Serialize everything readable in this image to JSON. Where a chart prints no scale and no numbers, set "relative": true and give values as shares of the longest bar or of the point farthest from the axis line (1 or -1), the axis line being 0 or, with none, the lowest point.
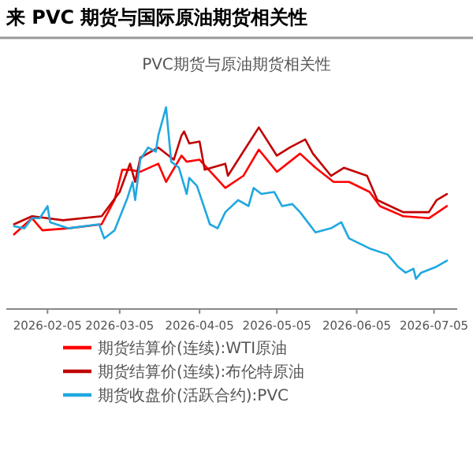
{
  "chart_data": {
    "type": "line",
    "title": "来 PVC 期货与国际原油期货相关性",
    "subtitle": "PVC期货与原油期货相关性",
    "relative": true,
    "legend": "bottom",
    "xlim": [
      "2026-01-20",
      "2026-07-14"
    ],
    "xticks": [
      "2026-02-05",
      "2026-03-05",
      "2026-04-05",
      "2026-05-05",
      "2026-06-05",
      "2026-07-05"
    ],
    "series": [
      {
        "name": "期货结算价(连续):WTI原油",
        "color": "#ff0000",
        "x": [
          "2026-01-23",
          "2026-01-30",
          "2026-02-03",
          "2026-02-13",
          "2026-02-26",
          "2026-03-03",
          "2026-03-06",
          "2026-03-09",
          "2026-03-13",
          "2026-03-20",
          "2026-03-23",
          "2026-03-29",
          "2026-03-31",
          "2026-04-05",
          "2026-04-15",
          "2026-04-22",
          "2026-04-28",
          "2026-05-05",
          "2026-05-10",
          "2026-05-14",
          "2026-05-20",
          "2026-05-27",
          "2026-06-02",
          "2026-06-10",
          "2026-06-14",
          "2026-06-23",
          "2026-07-03",
          "2026-07-10"
        ],
        "values": [
          0.37,
          0.45,
          0.39,
          0.4,
          0.42,
          0.54,
          0.69,
          0.69,
          0.68,
          0.72,
          0.63,
          0.76,
          0.73,
          0.74,
          0.6,
          0.66,
          0.79,
          0.68,
          0.73,
          0.77,
          0.7,
          0.63,
          0.63,
          0.58,
          0.51,
          0.46,
          0.45,
          0.51
        ]
      },
      {
        "name": "期货结算价(连续):布伦特原油",
        "color": "#c00000",
        "x": [
          "2026-01-23",
          "2026-01-30",
          "2026-02-11",
          "2026-02-26",
          "2026-03-05",
          "2026-03-09",
          "2026-03-11",
          "2026-03-13",
          "2026-03-20",
          "2026-03-26",
          "2026-03-29",
          "2026-03-30",
          "2026-04-01",
          "2026-04-05",
          "2026-04-07",
          "2026-04-15",
          "2026-04-16",
          "2026-04-22",
          "2026-04-28",
          "2026-05-05",
          "2026-05-10",
          "2026-05-16",
          "2026-05-19",
          "2026-05-26",
          "2026-05-31",
          "2026-06-09",
          "2026-06-13",
          "2026-06-23",
          "2026-07-03",
          "2026-07-06",
          "2026-07-10"
        ],
        "values": [
          0.42,
          0.46,
          0.44,
          0.46,
          0.58,
          0.72,
          0.63,
          0.75,
          0.8,
          0.74,
          0.86,
          0.88,
          0.82,
          0.83,
          0.69,
          0.72,
          0.66,
          0.78,
          0.9,
          0.76,
          0.8,
          0.84,
          0.77,
          0.66,
          0.7,
          0.66,
          0.54,
          0.48,
          0.48,
          0.54,
          0.57
        ]
      },
      {
        "name": "期货收盘价(活跃合约):PVC",
        "color": "#1fa8e0",
        "x": [
          "2026-01-23",
          "2026-01-27",
          "2026-01-30",
          "2026-02-02",
          "2026-02-05",
          "2026-02-06",
          "2026-02-13",
          "2026-02-25",
          "2026-02-27",
          "2026-03-03",
          "2026-03-08",
          "2026-03-10",
          "2026-03-11",
          "2026-03-13",
          "2026-03-16",
          "2026-03-19",
          "2026-03-20",
          "2026-03-23",
          "2026-03-25",
          "2026-03-28",
          "2026-03-31",
          "2026-04-01",
          "2026-04-04",
          "2026-04-09",
          "2026-04-12",
          "2026-04-15",
          "2026-04-20",
          "2026-04-24",
          "2026-04-26",
          "2026-04-29",
          "2026-05-04",
          "2026-05-07",
          "2026-05-11",
          "2026-05-14",
          "2026-05-20",
          "2026-05-26",
          "2026-05-30",
          "2026-06-02",
          "2026-06-10",
          "2026-06-17",
          "2026-06-21",
          "2026-06-24",
          "2026-06-27",
          "2026-06-28",
          "2026-06-30",
          "2026-07-06",
          "2026-07-10"
        ],
        "values": [
          0.41,
          0.4,
          0.45,
          0.45,
          0.51,
          0.43,
          0.4,
          0.42,
          0.35,
          0.39,
          0.55,
          0.63,
          0.54,
          0.74,
          0.8,
          0.78,
          0.86,
          1.0,
          0.73,
          0.7,
          0.57,
          0.65,
          0.61,
          0.42,
          0.4,
          0.48,
          0.54,
          0.51,
          0.6,
          0.57,
          0.58,
          0.51,
          0.52,
          0.48,
          0.38,
          0.4,
          0.43,
          0.35,
          0.3,
          0.27,
          0.21,
          0.18,
          0.2,
          0.15,
          0.18,
          0.21,
          0.24
        ]
      }
    ]
  }
}
